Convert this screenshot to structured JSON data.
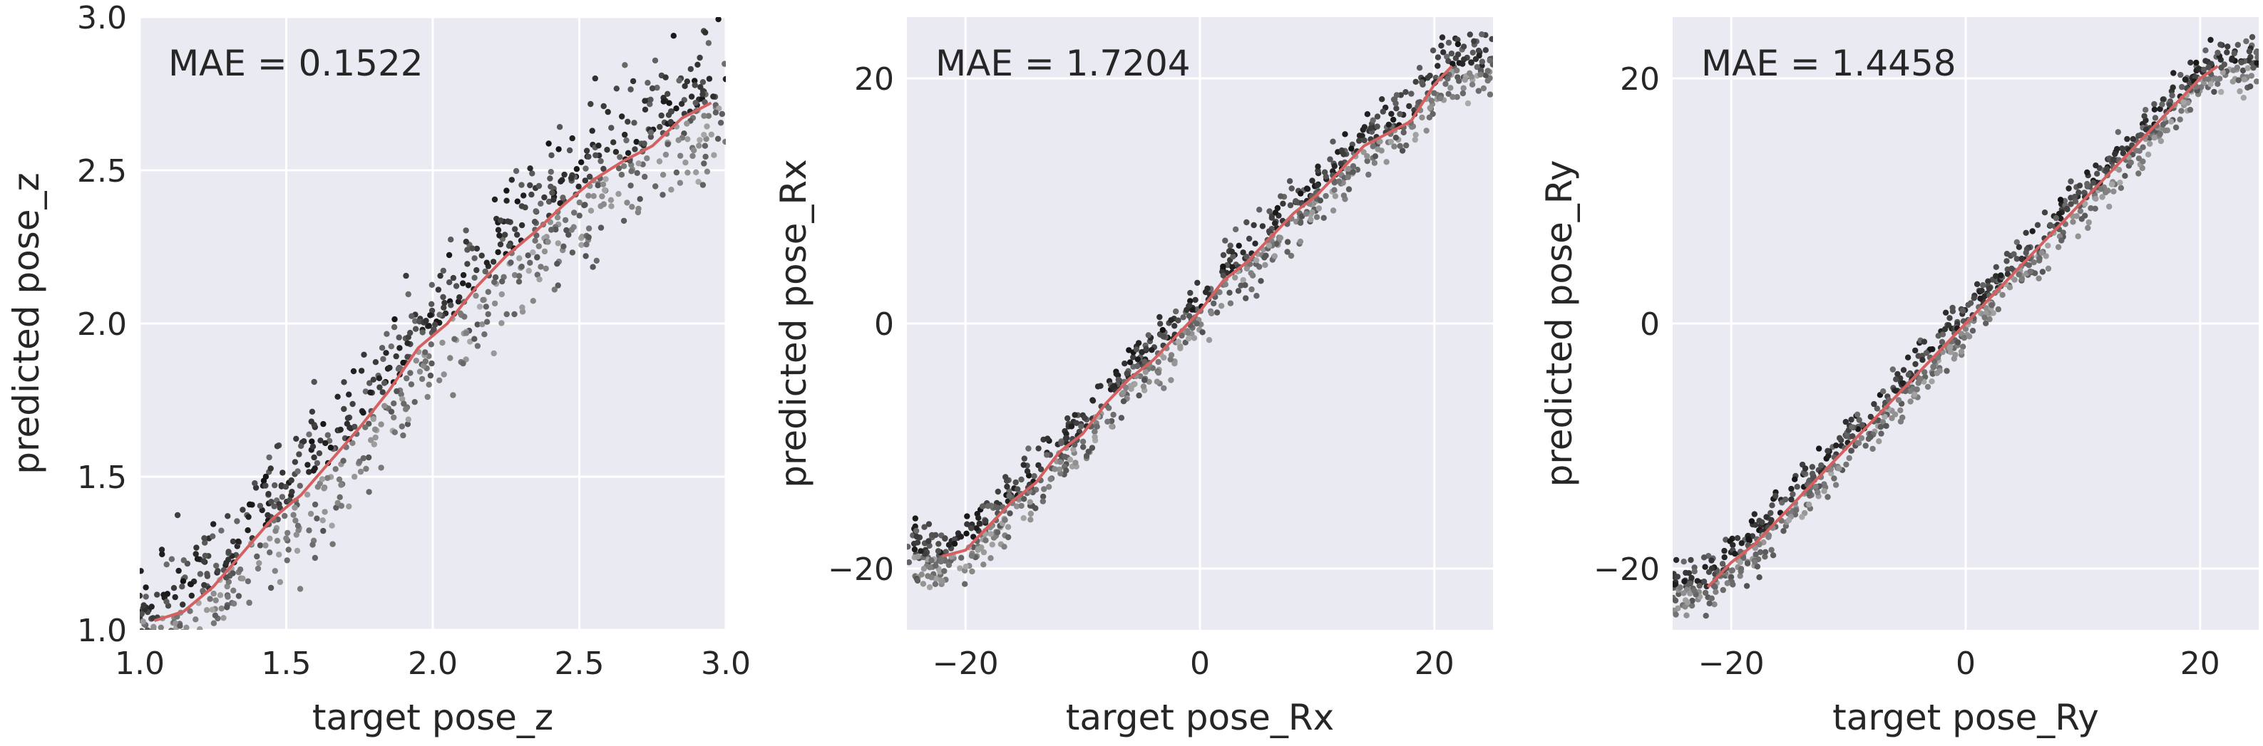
{
  "colors": {
    "background": "#EAEAF2",
    "grid": "#FFFFFF",
    "trend": "#D65F5F",
    "text": "#262626"
  },
  "chart_data": [
    {
      "type": "scatter",
      "title": "",
      "annotation": "MAE = 0.1522",
      "xlabel": "target pose_z",
      "ylabel": "predicted pose_z",
      "xlim": [
        1.0,
        3.0
      ],
      "ylim": [
        1.0,
        3.0
      ],
      "xticks": [
        1.0,
        1.5,
        2.0,
        2.5,
        3.0
      ],
      "yticks": [
        1.0,
        1.5,
        2.0,
        2.5,
        3.0
      ],
      "xtick_labels": [
        "1.0",
        "1.5",
        "2.0",
        "2.5",
        "3.0"
      ],
      "ytick_labels": [
        "1.0",
        "1.5",
        "2.0",
        "2.5",
        "3.0"
      ],
      "grid": true,
      "trend_line": {
        "x": [
          1.05,
          1.15,
          1.25,
          1.35,
          1.45,
          1.55,
          1.65,
          1.75,
          1.85,
          1.95,
          2.05,
          2.15,
          2.25,
          2.35,
          2.45,
          2.55,
          2.65,
          2.75,
          2.85,
          2.95
        ],
        "y": [
          1.03,
          1.06,
          1.14,
          1.25,
          1.36,
          1.44,
          1.55,
          1.66,
          1.78,
          1.92,
          2.0,
          2.12,
          2.22,
          2.3,
          2.39,
          2.47,
          2.53,
          2.58,
          2.67,
          2.72
        ]
      },
      "scatter_spread": 0.15
    },
    {
      "type": "scatter",
      "title": "",
      "annotation": "MAE = 1.7204",
      "xlabel": "target pose_Rx",
      "ylabel": "predicted pose_Rx",
      "xlim": [
        -25,
        25
      ],
      "ylim": [
        -25,
        25
      ],
      "xticks": [
        -20,
        0,
        20
      ],
      "yticks": [
        -20,
        0,
        20
      ],
      "xtick_labels": [
        "−20",
        "0",
        "20"
      ],
      "ytick_labels": [
        "−20",
        "0",
        "20"
      ],
      "grid": true,
      "trend_line": {
        "x": [
          -22,
          -20,
          -18,
          -16,
          -14,
          -12,
          -10,
          -8,
          -6,
          -4,
          -2,
          0,
          2,
          4,
          6,
          8,
          10,
          12,
          14,
          16,
          18,
          20,
          21.5
        ],
        "y": [
          -19,
          -18.5,
          -16.5,
          -14.5,
          -13,
          -10.5,
          -9,
          -6.5,
          -4.5,
          -3,
          -1,
          1,
          3.5,
          5,
          7,
          9,
          10.5,
          12.5,
          14.5,
          15.5,
          16.5,
          19.5,
          21
        ]
      },
      "scatter_spread": 1.7
    },
    {
      "type": "scatter",
      "title": "",
      "annotation": "MAE = 1.4458",
      "xlabel": "target pose_Ry",
      "ylabel": "predicted pose_Ry",
      "xlim": [
        -25,
        25
      ],
      "ylim": [
        -25,
        25
      ],
      "xticks": [
        -20,
        0,
        20
      ],
      "yticks": [
        -20,
        0,
        20
      ],
      "xtick_labels": [
        "−20",
        "0",
        "20"
      ],
      "ytick_labels": [
        "−20",
        "0",
        "20"
      ],
      "grid": true,
      "trend_line": {
        "x": [
          -22,
          -20,
          -18,
          -16,
          -14,
          -12,
          -10,
          -8,
          -6,
          -4,
          -2,
          0,
          2,
          4,
          6,
          8,
          10,
          12,
          14,
          16,
          18,
          20,
          21.5
        ],
        "y": [
          -21.5,
          -19.5,
          -18,
          -16,
          -14,
          -12,
          -10,
          -8,
          -6,
          -4,
          -2,
          0,
          2,
          4,
          6,
          8,
          10,
          12,
          14,
          16,
          18,
          20,
          21
        ]
      },
      "scatter_spread": 1.45
    }
  ]
}
